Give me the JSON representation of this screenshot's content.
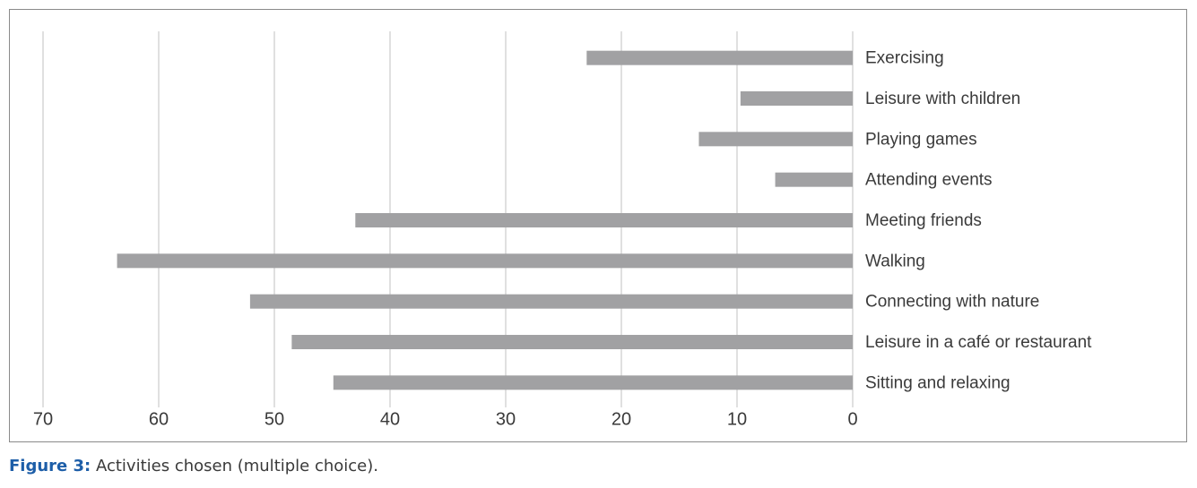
{
  "chart_data": {
    "type": "hbar",
    "categories": [
      "Exercising",
      "Leisure with children",
      "Playing games",
      "Attending events",
      "Meeting friends",
      "Walking",
      "Connecting with nature",
      "Leisure in a café or restaurant",
      "Sitting and relaxing"
    ],
    "values": [
      23,
      9.7,
      13.3,
      6.7,
      43,
      63.6,
      52.1,
      48.5,
      44.9
    ],
    "color": "#a1a1a3",
    "xlim": [
      70,
      0
    ],
    "xticks": [
      70,
      60,
      50,
      40,
      30,
      20,
      10,
      0
    ],
    "grid": true,
    "figure_label": "Figure 3:",
    "caption": "Activities chosen (multiple choice)."
  }
}
